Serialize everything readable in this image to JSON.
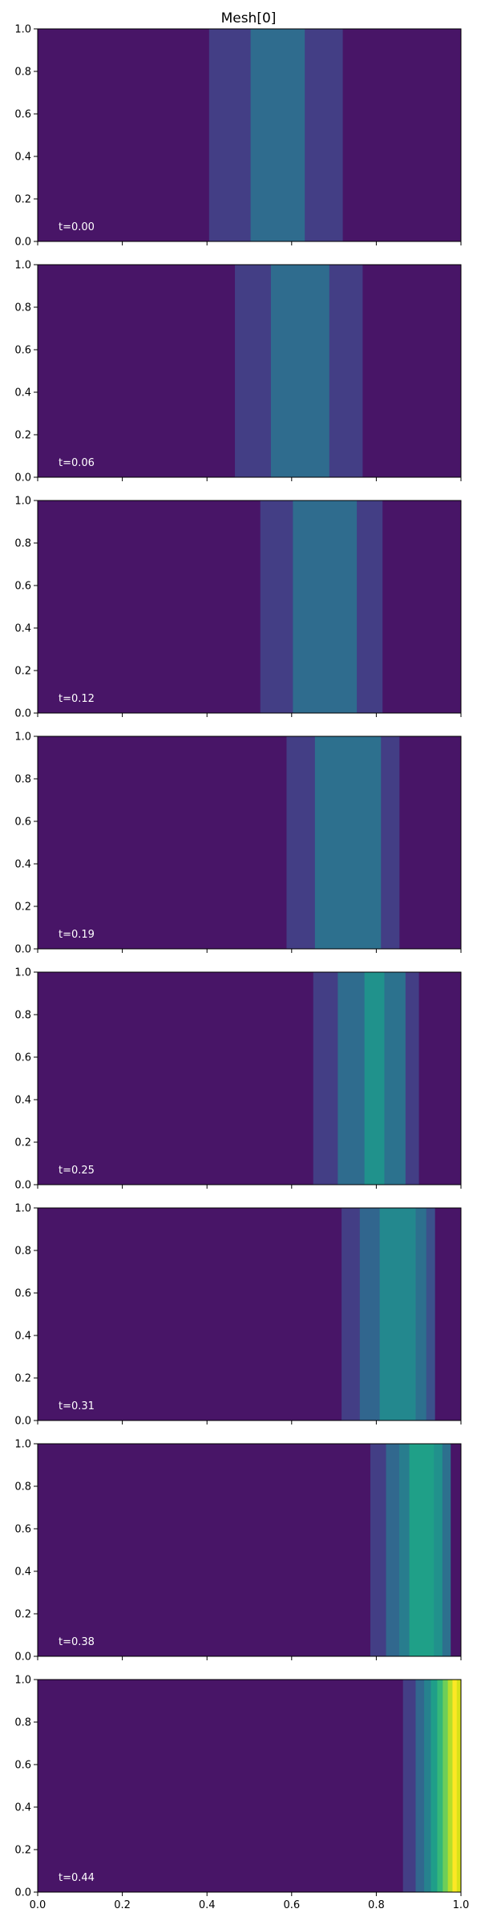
{
  "chart_data": {
    "type": "heatmap",
    "title": "Mesh[0]",
    "xlim": [
      0,
      1
    ],
    "ylim": [
      0,
      1
    ],
    "xticks": [
      "0.0",
      "0.2",
      "0.4",
      "0.6",
      "0.8",
      "1.0"
    ],
    "yticks": [
      "0.0",
      "0.2",
      "0.4",
      "0.6",
      "0.8",
      "1.0"
    ],
    "x_tick_labels_on_last_panel_only": true,
    "colormap": "viridis",
    "background_color": "#481567",
    "panels": [
      {
        "label": "t=0.00",
        "bands": [
          {
            "x0": 0.405,
            "x1": 0.503,
            "color": "#433e85"
          },
          {
            "x0": 0.503,
            "x1": 0.631,
            "color": "#2f6c8e"
          },
          {
            "x0": 0.631,
            "x1": 0.72,
            "color": "#433e85"
          }
        ]
      },
      {
        "label": "t=0.06",
        "bands": [
          {
            "x0": 0.466,
            "x1": 0.551,
            "color": "#433e85"
          },
          {
            "x0": 0.551,
            "x1": 0.689,
            "color": "#2f6c8e"
          },
          {
            "x0": 0.689,
            "x1": 0.767,
            "color": "#433e85"
          }
        ]
      },
      {
        "label": "t=0.12",
        "bands": [
          {
            "x0": 0.526,
            "x1": 0.603,
            "color": "#433e85"
          },
          {
            "x0": 0.603,
            "x1": 0.754,
            "color": "#2f6c8e"
          },
          {
            "x0": 0.754,
            "x1": 0.814,
            "color": "#433e85"
          }
        ]
      },
      {
        "label": "t=0.19",
        "bands": [
          {
            "x0": 0.588,
            "x1": 0.655,
            "color": "#433e85"
          },
          {
            "x0": 0.655,
            "x1": 0.811,
            "color": "#2d708e"
          },
          {
            "x0": 0.811,
            "x1": 0.854,
            "color": "#433e85"
          }
        ]
      },
      {
        "label": "t=0.25",
        "bands": [
          {
            "x0": 0.651,
            "x1": 0.709,
            "color": "#433e85"
          },
          {
            "x0": 0.709,
            "x1": 0.772,
            "color": "#2f6c8e"
          },
          {
            "x0": 0.772,
            "x1": 0.819,
            "color": "#20928c"
          },
          {
            "x0": 0.819,
            "x1": 0.869,
            "color": "#2c728e"
          },
          {
            "x0": 0.869,
            "x1": 0.9,
            "color": "#433e85"
          }
        ]
      },
      {
        "label": "t=0.31",
        "bands": [
          {
            "x0": 0.718,
            "x1": 0.761,
            "color": "#433e85"
          },
          {
            "x0": 0.761,
            "x1": 0.808,
            "color": "#31668e"
          },
          {
            "x0": 0.808,
            "x1": 0.893,
            "color": "#23888e"
          },
          {
            "x0": 0.893,
            "x1": 0.918,
            "color": "#2d708e"
          },
          {
            "x0": 0.918,
            "x1": 0.938,
            "color": "#3b518b"
          }
        ]
      },
      {
        "label": "t=0.38",
        "bands": [
          {
            "x0": 0.786,
            "x1": 0.823,
            "color": "#433e85"
          },
          {
            "x0": 0.823,
            "x1": 0.854,
            "color": "#31688e"
          },
          {
            "x0": 0.854,
            "x1": 0.878,
            "color": "#287d8e"
          },
          {
            "x0": 0.878,
            "x1": 0.936,
            "color": "#1fa088"
          },
          {
            "x0": 0.936,
            "x1": 0.956,
            "color": "#21918c"
          },
          {
            "x0": 0.956,
            "x1": 0.975,
            "color": "#2d708e"
          }
        ]
      },
      {
        "label": "t=0.44",
        "bands": [
          {
            "x0": 0.863,
            "x1": 0.893,
            "color": "#433e85"
          },
          {
            "x0": 0.893,
            "x1": 0.913,
            "color": "#31688e"
          },
          {
            "x0": 0.913,
            "x1": 0.929,
            "color": "#26828e"
          },
          {
            "x0": 0.929,
            "x1": 0.944,
            "color": "#1f9e89"
          },
          {
            "x0": 0.944,
            "x1": 0.957,
            "color": "#35b779"
          },
          {
            "x0": 0.957,
            "x1": 0.969,
            "color": "#6ece58"
          },
          {
            "x0": 0.969,
            "x1": 0.98,
            "color": "#b5de2b"
          },
          {
            "x0": 0.98,
            "x1": 0.99,
            "color": "#fde725"
          },
          {
            "x0": 0.99,
            "x1": 1.0,
            "color": "#d8e219"
          }
        ]
      }
    ]
  }
}
